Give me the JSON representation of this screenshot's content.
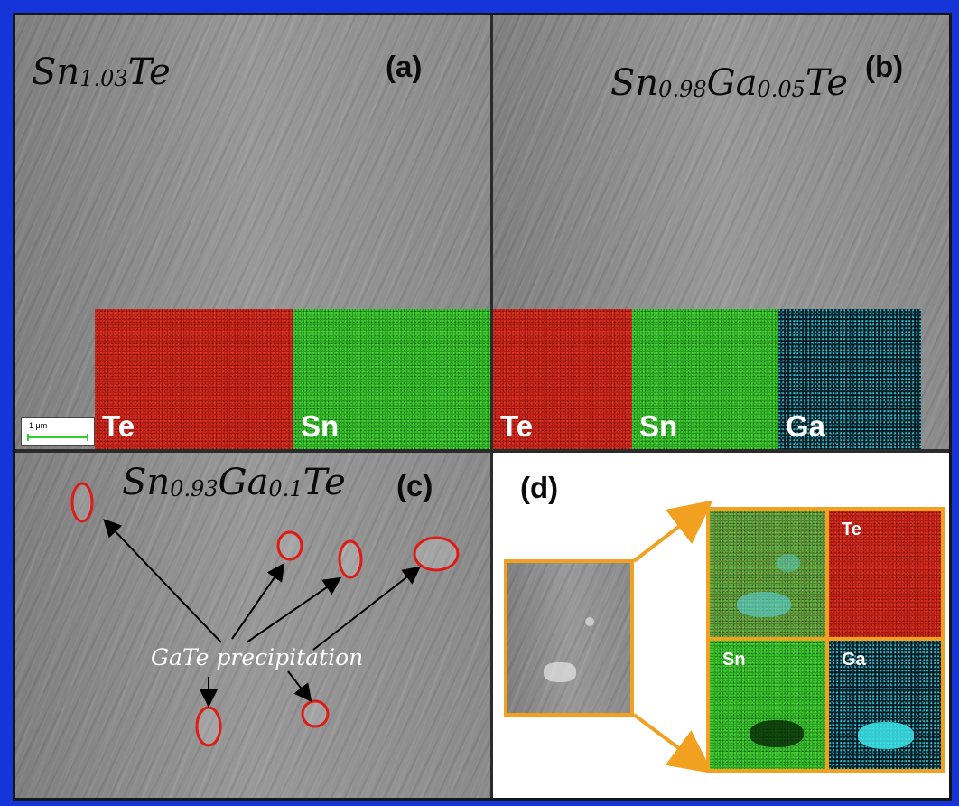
{
  "panels": {
    "a": {
      "letter": "(a)",
      "formula": {
        "p1": "Sn",
        "s1": "1.03",
        "p2": "Te"
      }
    },
    "b": {
      "letter": "(b)",
      "formula": {
        "p1": "Sn",
        "s1": "0.98",
        "p2": "Ga",
        "s2": "0.05",
        "p3": "Te"
      }
    },
    "c": {
      "letter": "(c)",
      "formula": {
        "p1": "Sn",
        "s1": "0.93",
        "p2": "Ga",
        "s2": "0.1",
        "p3": "Te"
      },
      "annotation": "GaTe precipitation"
    },
    "d": {
      "letter": "(d)"
    }
  },
  "scale_bar": {
    "label": "1 μm"
  },
  "element_maps": {
    "a": [
      "Te",
      "Sn"
    ],
    "b": [
      "Te",
      "Sn",
      "Ga"
    ],
    "d": [
      "Te",
      "Sn",
      "Ga"
    ]
  },
  "colors": {
    "te_map": "#b21b12",
    "sn_map": "#27a21e",
    "ga_map": "#3cdce6",
    "precipitate_circle": "#e01a14",
    "inset_frame": "#f2a020",
    "page_border": "#1535d9"
  }
}
